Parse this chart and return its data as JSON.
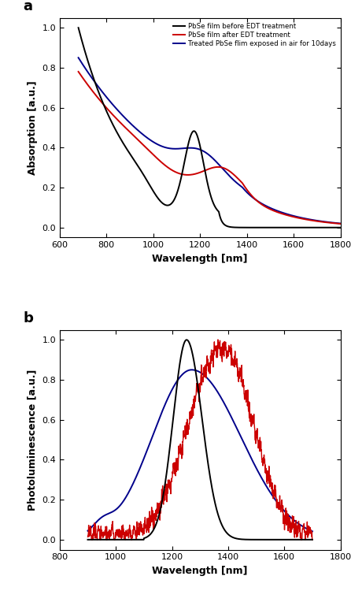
{
  "panel_a": {
    "title": "a",
    "xlabel": "Wavelength [nm]",
    "ylabel": "Absorption [a.u.]",
    "xlim": [
      600,
      1800
    ],
    "ylim": [
      -0.05,
      1.05
    ],
    "xticks": [
      600,
      800,
      1000,
      1200,
      1400,
      1600,
      1800
    ],
    "yticks": [
      0.0,
      0.2,
      0.4,
      0.6,
      0.8,
      1.0
    ],
    "legend": [
      {
        "label": "PbSe film before EDT treatment",
        "color": "#000000"
      },
      {
        "label": "PbSe film after EDT treatment",
        "color": "#cc0000"
      },
      {
        "label": "Treated PbSe flim exposed in air for 10days",
        "color": "#00008B"
      }
    ]
  },
  "panel_b": {
    "title": "b",
    "xlabel": "Wavelength [nm]",
    "ylabel": "Photoluminescence [a.u.]",
    "xlim": [
      800,
      1800
    ],
    "ylim": [
      -0.05,
      1.05
    ],
    "xticks": [
      800,
      1000,
      1200,
      1400,
      1600,
      1800
    ],
    "yticks": [
      0.0,
      0.2,
      0.4,
      0.6,
      0.8,
      1.0
    ],
    "legend": []
  },
  "colors": {
    "black": "#000000",
    "red": "#cc0000",
    "blue": "#00008B"
  }
}
